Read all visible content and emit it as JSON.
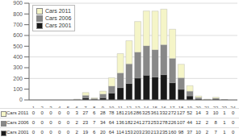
{
  "chart_data": {
    "type": "bar",
    "stacked": true,
    "categories": [
      1,
      2,
      3,
      4,
      5,
      6,
      7,
      8,
      9,
      10,
      11,
      12,
      13,
      14,
      15,
      16,
      17,
      18,
      19,
      20,
      21,
      22,
      23,
      24
    ],
    "series": [
      {
        "name": "Cars 2001",
        "color": "#1a1a1a",
        "values": [
          0,
          0,
          0,
          0,
          0,
          2,
          19,
          6,
          20,
          64,
          114,
          153,
          203,
          230,
          213,
          235,
          160,
          98,
          37,
          10,
          2,
          7,
          1,
          0
        ]
      },
      {
        "name": "Cars 2006",
        "color": "#888888",
        "values": [
          0,
          0,
          0,
          0,
          0,
          2,
          23,
          7,
          34,
          64,
          136,
          182,
          241,
          273,
          253,
          278,
          226,
          107,
          44,
          12,
          2,
          8,
          1,
          0
        ]
      },
      {
        "name": "Cars 2011",
        "color": "#f5f5c8",
        "values": [
          0,
          0,
          0,
          0,
          0,
          3,
          27,
          6,
          28,
          78,
          181,
          216,
          286,
          325,
          361,
          332,
          272,
          127,
          52,
          14,
          3,
          10,
          1,
          0
        ]
      }
    ],
    "ylim": [
      0,
      900
    ],
    "yticks": [
      0,
      100,
      200,
      300,
      400,
      500,
      600,
      700,
      800,
      900
    ],
    "grid": true,
    "legend": "upper left"
  }
}
